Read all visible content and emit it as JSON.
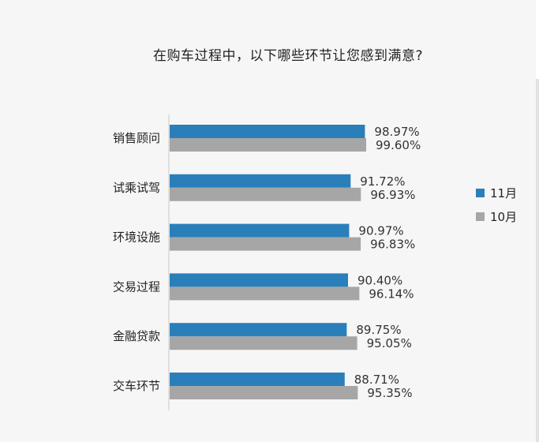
{
  "chart_data": {
    "type": "bar",
    "orientation": "horizontal",
    "title": "在购车过程中，以下哪些环节让您感到满意?",
    "categories": [
      "销售顾问",
      "试乘试驾",
      "环境设施",
      "交易过程",
      "金融贷款",
      "交车环节"
    ],
    "series": [
      {
        "name": "11月",
        "color": "#2a7fba",
        "values": [
          98.97,
          91.72,
          90.97,
          90.4,
          89.75,
          88.71
        ],
        "labels": [
          "98.97%",
          "91.72%",
          "90.97%",
          "90.40%",
          "89.75%",
          "88.71%"
        ]
      },
      {
        "name": "10月",
        "color": "#a6a6a6",
        "values": [
          99.6,
          96.93,
          96.83,
          96.14,
          95.05,
          95.35
        ],
        "labels": [
          "99.60%",
          "96.93%",
          "96.83%",
          "96.14%",
          "95.05%",
          "95.35%"
        ]
      }
    ],
    "xlim": [
      0,
      100
    ],
    "grid": false,
    "legend_position": "right"
  }
}
